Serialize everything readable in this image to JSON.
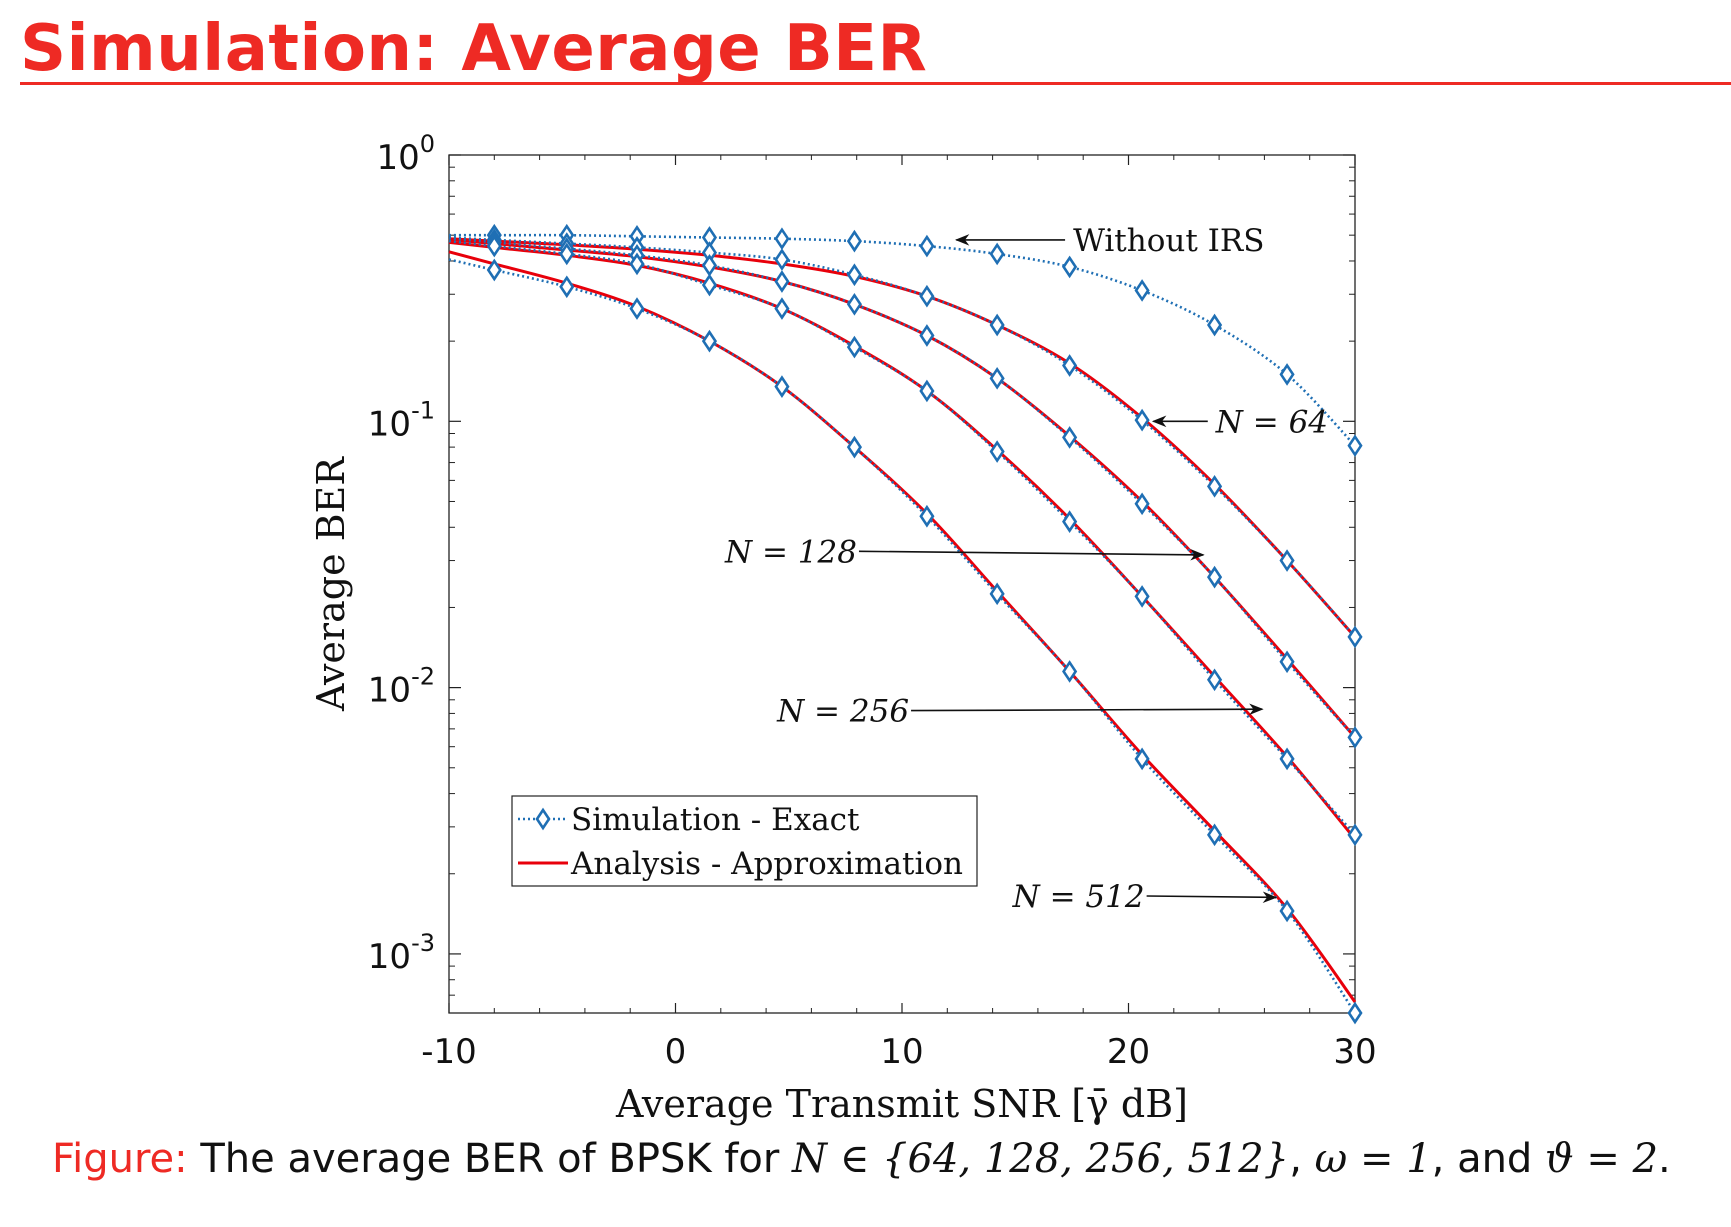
{
  "slide": {
    "title": "Simulation: Average BER",
    "accent_color": "#ee2a24"
  },
  "caption": {
    "label": "Figure:",
    "text": "The average BER of BPSK for",
    "math_set": "N ∈ {64, 128, 256, 512}",
    "sep1": ",",
    "math_omega": "ω = 1",
    "and": ", and",
    "math_theta": "ϑ = 2",
    "end": "."
  },
  "chart_data": {
    "type": "line",
    "xlabel": "Average Transmit SNR [γ̄ dB]",
    "ylabel": "Average BER",
    "xlim": [
      -10,
      30
    ],
    "ylim": [
      0.0006,
      1
    ],
    "yscale": "log",
    "xticks": [
      "-10",
      "0",
      "10",
      "20",
      "30"
    ],
    "yticks": [
      {
        "value": 1,
        "base": "10",
        "exp": "0"
      },
      {
        "value": 0.1,
        "base": "10",
        "exp": "-1"
      },
      {
        "value": 0.01,
        "base": "10",
        "exp": "-2"
      },
      {
        "value": 0.001,
        "base": "10",
        "exp": "-3"
      }
    ],
    "grid": false,
    "legend_placement": "lower-left",
    "legend": [
      {
        "label": "Simulation - Exact",
        "style": "dotted-diamond",
        "color": "#1f6fb4"
      },
      {
        "label": "Analysis - Approximation",
        "style": "solid",
        "color": "#e8000b"
      }
    ],
    "sim_x": [
      -8,
      -4.8,
      -1.7,
      1.5,
      4.7,
      7.9,
      11.1,
      14.2,
      17.4,
      20.6,
      23.8,
      27,
      30
    ],
    "series": [
      {
        "label": "Without IRS",
        "sim": [
          0.5,
          0.5,
          0.495,
          0.49,
          0.485,
          0.475,
          0.455,
          0.425,
          0.38,
          0.31,
          0.23,
          0.15,
          0.081
        ]
      },
      {
        "label": "N = 64",
        "sim": [
          0.48,
          0.465,
          0.45,
          0.43,
          0.405,
          0.355,
          0.295,
          0.23,
          0.162,
          0.101,
          0.057,
          0.03,
          0.0155
        ],
        "analysis": [
          0.475,
          0.46,
          0.443,
          0.42,
          0.39,
          0.35,
          0.295,
          0.23,
          0.165,
          0.103,
          0.058,
          0.03,
          0.0155
        ]
      },
      {
        "label": "N = 128",
        "sim": [
          0.47,
          0.445,
          0.42,
          0.385,
          0.335,
          0.275,
          0.21,
          0.145,
          0.087,
          0.049,
          0.026,
          0.0125,
          0.0065
        ],
        "analysis": [
          0.465,
          0.44,
          0.415,
          0.38,
          0.335,
          0.275,
          0.21,
          0.145,
          0.088,
          0.05,
          0.026,
          0.0128,
          0.0065
        ]
      },
      {
        "label": "N = 256",
        "sim": [
          0.455,
          0.425,
          0.39,
          0.325,
          0.265,
          0.19,
          0.13,
          0.077,
          0.042,
          0.022,
          0.0107,
          0.0054,
          0.0028
        ],
        "analysis": [
          0.45,
          0.42,
          0.385,
          0.33,
          0.265,
          0.192,
          0.13,
          0.078,
          0.043,
          0.022,
          0.011,
          0.0055,
          0.0027
        ]
      },
      {
        "label": "N = 512",
        "sim": [
          0.37,
          0.32,
          0.265,
          0.2,
          0.135,
          0.08,
          0.044,
          0.0225,
          0.0115,
          0.0054,
          0.0028,
          0.00145,
          0.0006
        ],
        "analysis": [
          0.39,
          0.33,
          0.27,
          0.2,
          0.135,
          0.08,
          0.045,
          0.023,
          0.0115,
          0.0056,
          0.0029,
          0.00148,
          0.00066
        ]
      }
    ],
    "annotations": [
      {
        "text": "Without IRS",
        "italic": false,
        "from": [
          17.2,
          0.48
        ],
        "to": [
          12.4,
          0.48
        ]
      },
      {
        "text": "N = 64",
        "italic": true,
        "from": [
          23.5,
          0.1
        ],
        "to": [
          21.1,
          0.1
        ]
      },
      {
        "text": "N = 128",
        "italic": true,
        "from": [
          8.1,
          0.0325
        ],
        "to": [
          23.3,
          0.0315
        ]
      },
      {
        "text": "N = 256",
        "italic": true,
        "from": [
          10.4,
          0.0082
        ],
        "to": [
          25.9,
          0.0083
        ]
      },
      {
        "text": "N = 512",
        "italic": true,
        "from": [
          20.8,
          0.00165
        ],
        "to": [
          26.5,
          0.00163
        ]
      }
    ]
  }
}
